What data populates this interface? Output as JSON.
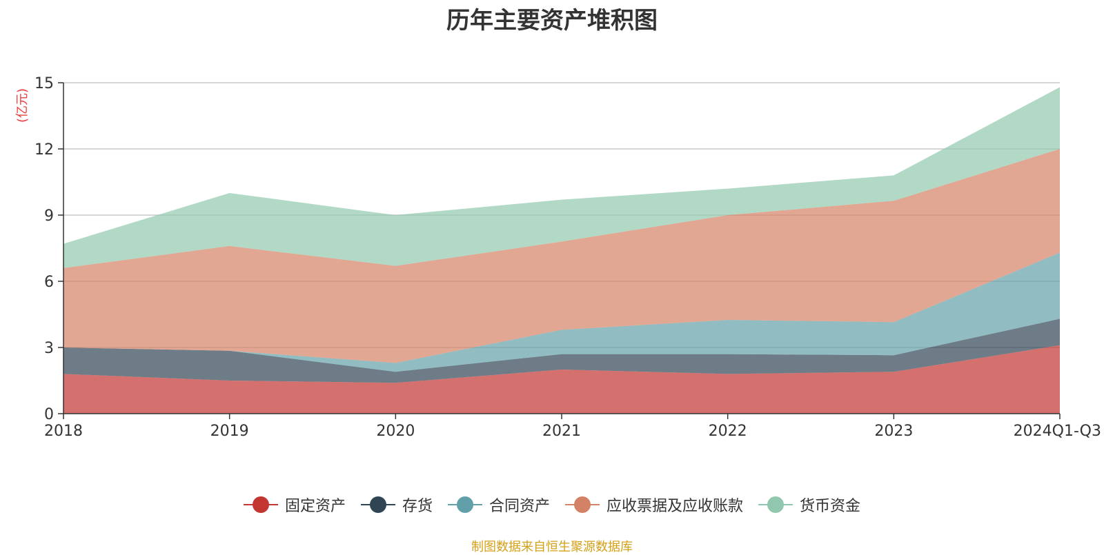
{
  "chart_data": {
    "type": "area",
    "stacked": true,
    "title": "历年主要资产堆积图",
    "y_unit": "(亿元)",
    "categories": [
      "2018",
      "2019",
      "2020",
      "2021",
      "2022",
      "2023",
      "2024Q1-Q3"
    ],
    "y_ticks": [
      "0",
      "3",
      "6",
      "9",
      "12",
      "15"
    ],
    "ylim": [
      0,
      15
    ],
    "grid": true,
    "legend_position": "bottom",
    "series": [
      {
        "name": "固定资产",
        "color": "#c23531",
        "values": [
          1.8,
          1.5,
          1.4,
          2.0,
          1.8,
          1.9,
          3.1
        ]
      },
      {
        "name": "存货",
        "color": "#2f4554",
        "values": [
          1.2,
          1.35,
          0.5,
          0.7,
          0.9,
          0.75,
          1.2
        ]
      },
      {
        "name": "合同资产",
        "color": "#61a0a8",
        "values": [
          0.0,
          0.0,
          0.4,
          1.1,
          1.55,
          1.5,
          3.0
        ]
      },
      {
        "name": "应收票据及应收账款",
        "color": "#d48265",
        "values": [
          3.6,
          4.75,
          4.4,
          4.0,
          4.75,
          5.5,
          4.7
        ]
      },
      {
        "name": "货币资金",
        "color": "#91c7ae",
        "values": [
          1.1,
          2.4,
          2.3,
          1.9,
          1.2,
          1.15,
          2.8
        ]
      }
    ]
  },
  "source_note": "制图数据来自恒生聚源数据库"
}
